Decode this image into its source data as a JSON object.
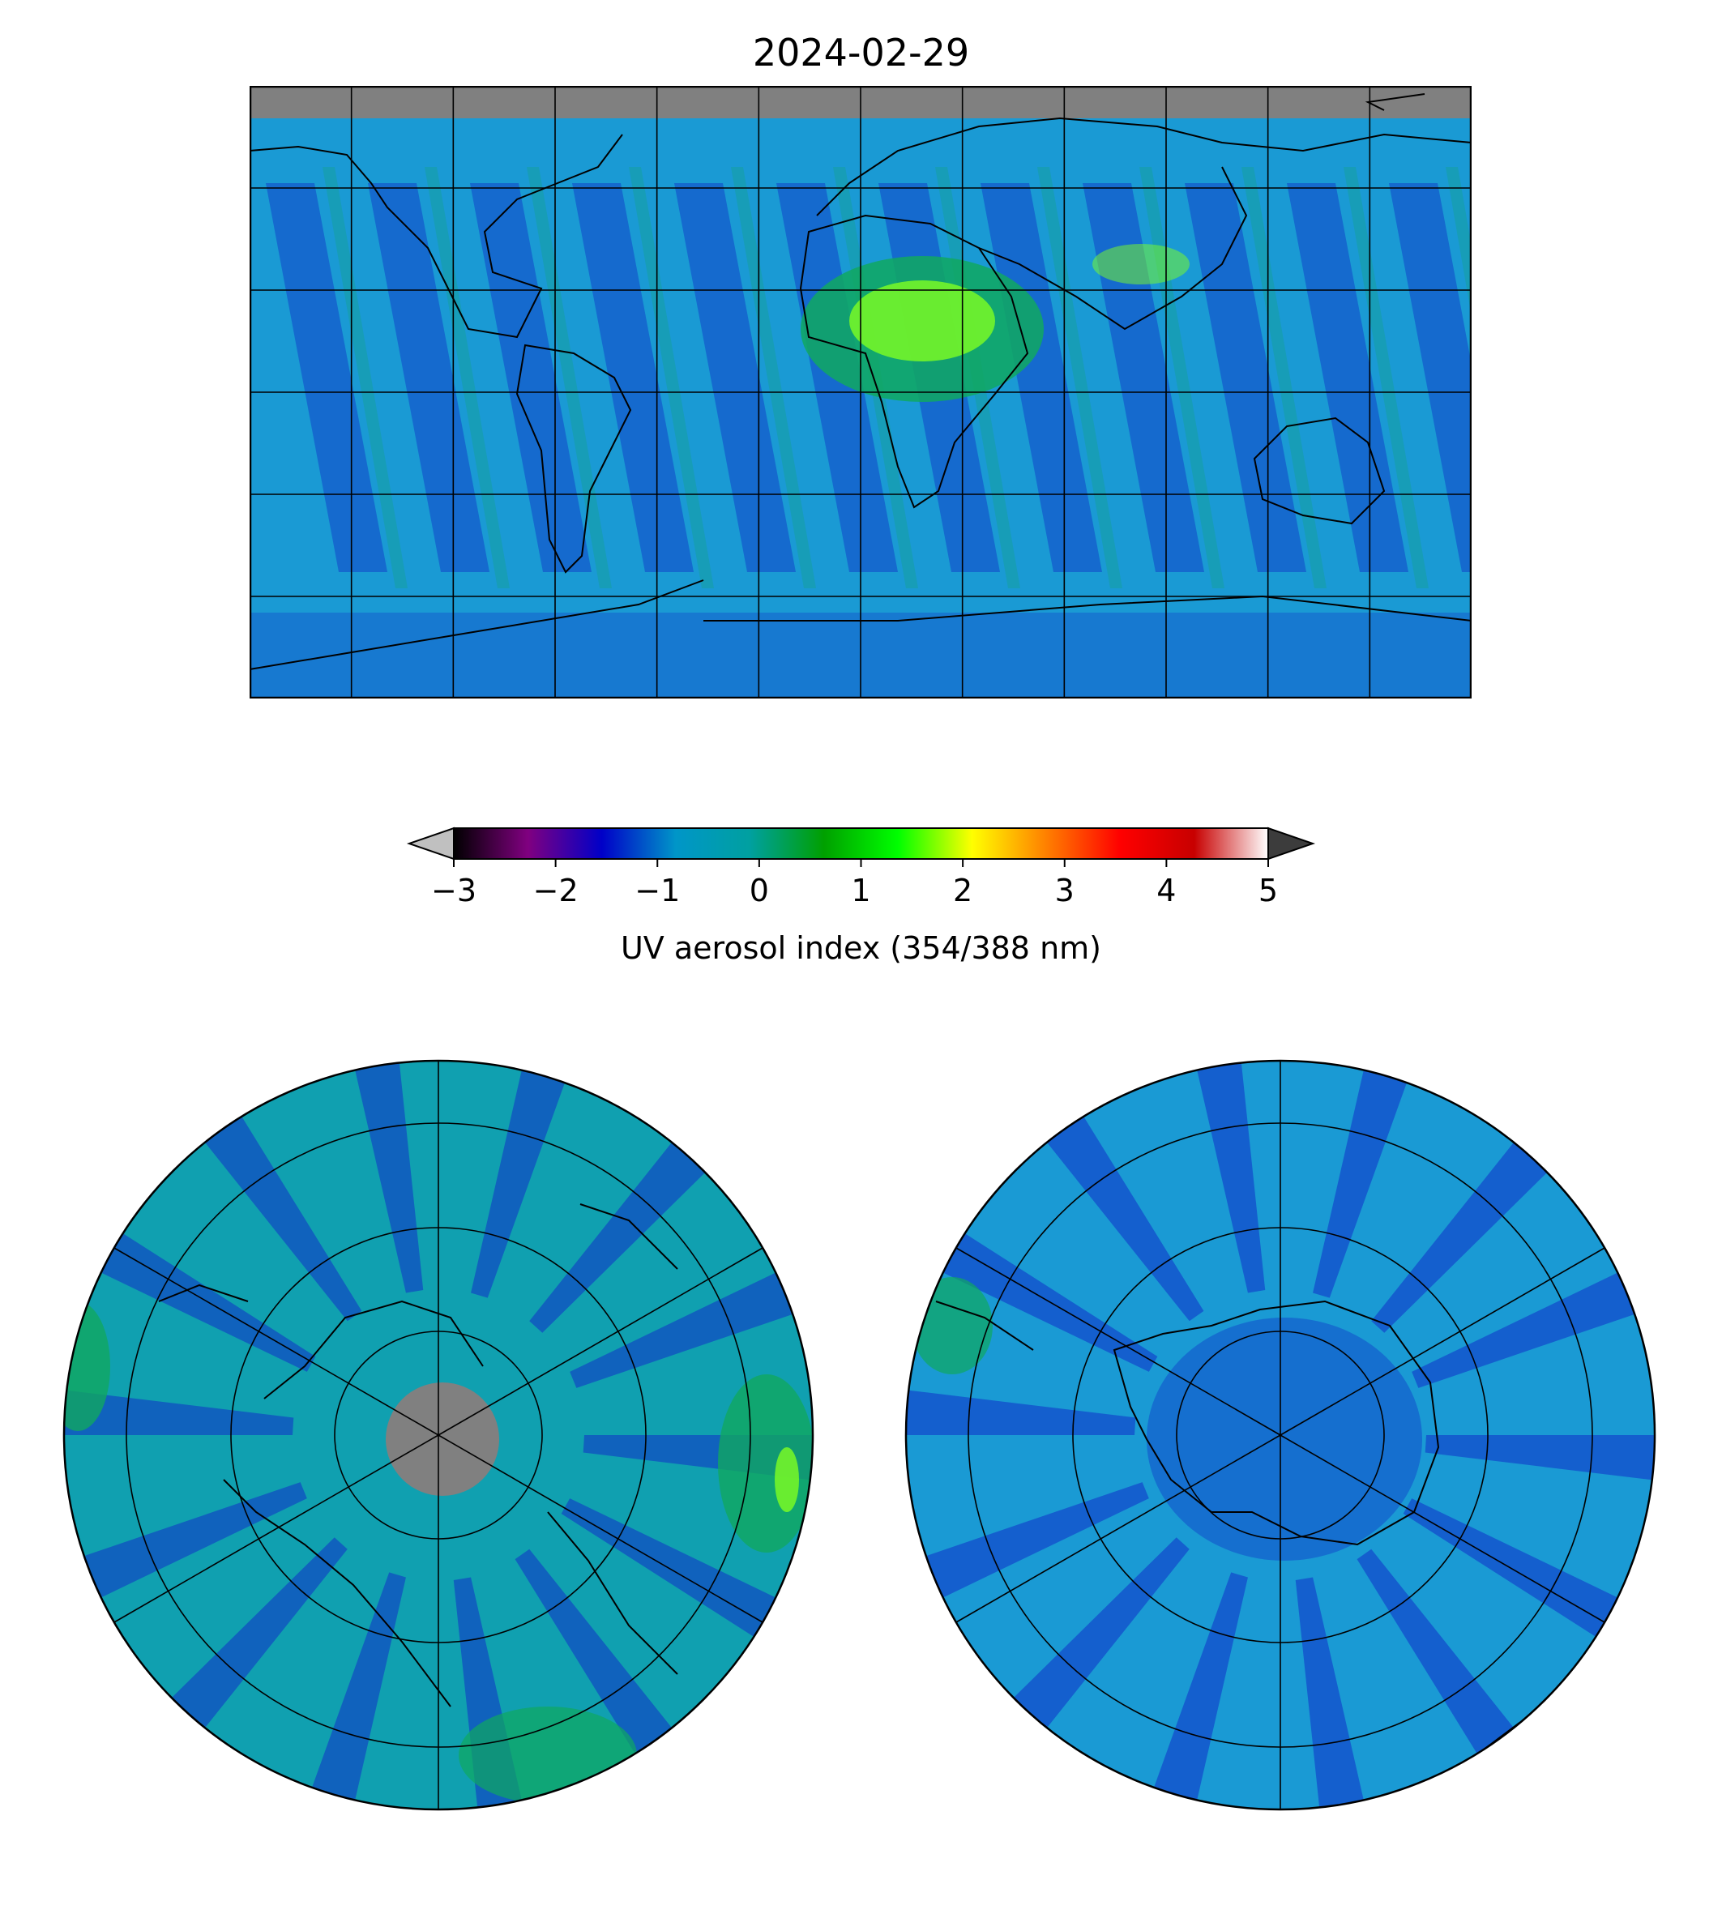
{
  "title": "2024-02-29",
  "colorbar": {
    "label": "UV aerosol index (354/388 nm)",
    "min": -3,
    "max": 5,
    "ticks": [
      "−3",
      "−2",
      "−1",
      "0",
      "1",
      "2",
      "3",
      "4",
      "5"
    ],
    "under_color": "#c0c0c0",
    "over_color": "#3c3c3c",
    "colormap_stops": [
      "#000000",
      "#800080",
      "#0000c8",
      "#0096c8",
      "#00a0a0",
      "#00a000",
      "#00ff00",
      "#ffff00",
      "#ff8000",
      "#ff0000",
      "#c80000",
      "#ffffff"
    ]
  },
  "colors": {
    "background_field": "#1a9ad4",
    "low_aerosol": "#1030c8",
    "moderate_aerosol": "#10a860",
    "high_aerosol": "#80ff20",
    "no_data": "#808080",
    "coastline": "#000000"
  },
  "maps": {
    "world": {
      "projection": "plate-carree",
      "gridlines": true
    },
    "north_pole": {
      "projection": "north-polar-stereographic",
      "gridlines": true
    },
    "south_pole": {
      "projection": "south-polar-stereographic",
      "gridlines": true
    }
  }
}
